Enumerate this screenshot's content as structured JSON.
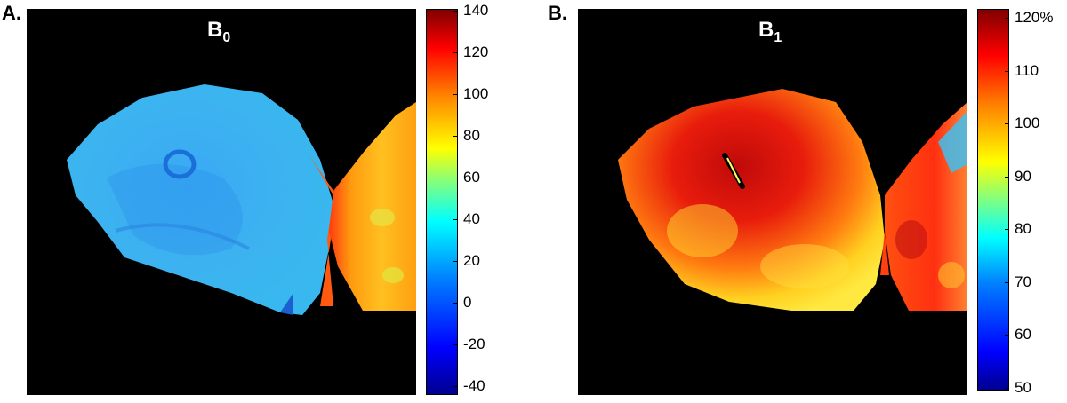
{
  "panels": [
    {
      "letter": "A.",
      "title_main": "B",
      "title_sub": "0",
      "colorbar_ticks": [
        "140",
        "120",
        "100",
        "80",
        "60",
        "40",
        "20",
        "0",
        "-20",
        "-40"
      ]
    },
    {
      "letter": "B.",
      "title_main": "B",
      "title_sub": "1",
      "colorbar_ticks": [
        "120%",
        "110",
        "100",
        "90",
        "80",
        "70",
        "60",
        "50"
      ]
    }
  ],
  "colormap": [
    "#00008f",
    "#0000ff",
    "#0080ff",
    "#00ffff",
    "#80ff80",
    "#ffff00",
    "#ff8000",
    "#ff0000",
    "#800000"
  ]
}
